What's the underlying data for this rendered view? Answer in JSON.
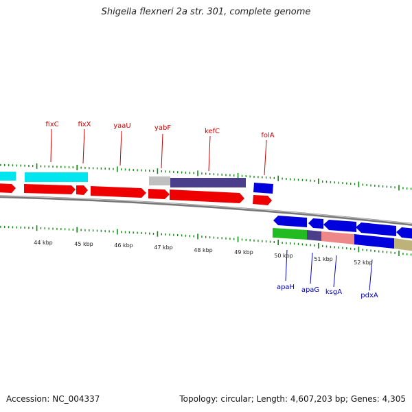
{
  "title": "Shigella flexneri 2a str. 301, complete genome",
  "footer": {
    "accession": "Accession: NC_004337",
    "summary": "Topology: circular; Length: 4,607,203 bp; Genes: 4,305"
  },
  "colors": {
    "forward_gene": "#ee0000",
    "reverse_gene": "#0000dd",
    "cyan_feature": "#00e5ee",
    "grey_feature": "#c0c0c0",
    "slate_feature": "#4b3f8c",
    "green_feature": "#22bb22",
    "pink_feature": "#ee8888",
    "khaki_feature": "#bdb279",
    "tick": "#118811",
    "backbone": "#777777",
    "label_forward": "#cc0000",
    "label_reverse": "#0000bb"
  },
  "scale_labels": [
    "44 kbp",
    "45 kbp",
    "46 kbp",
    "47 kbp",
    "48 kbp",
    "49 kbp",
    "50 kbp",
    "51 kbp",
    "52 kbp"
  ],
  "forward_gene_labels": [
    "fixC",
    "fixX",
    "yaaU",
    "yabF",
    "kefC",
    "folA"
  ],
  "reverse_gene_labels": [
    "apaH",
    "apaG",
    "ksgA",
    "pdxA"
  ]
}
